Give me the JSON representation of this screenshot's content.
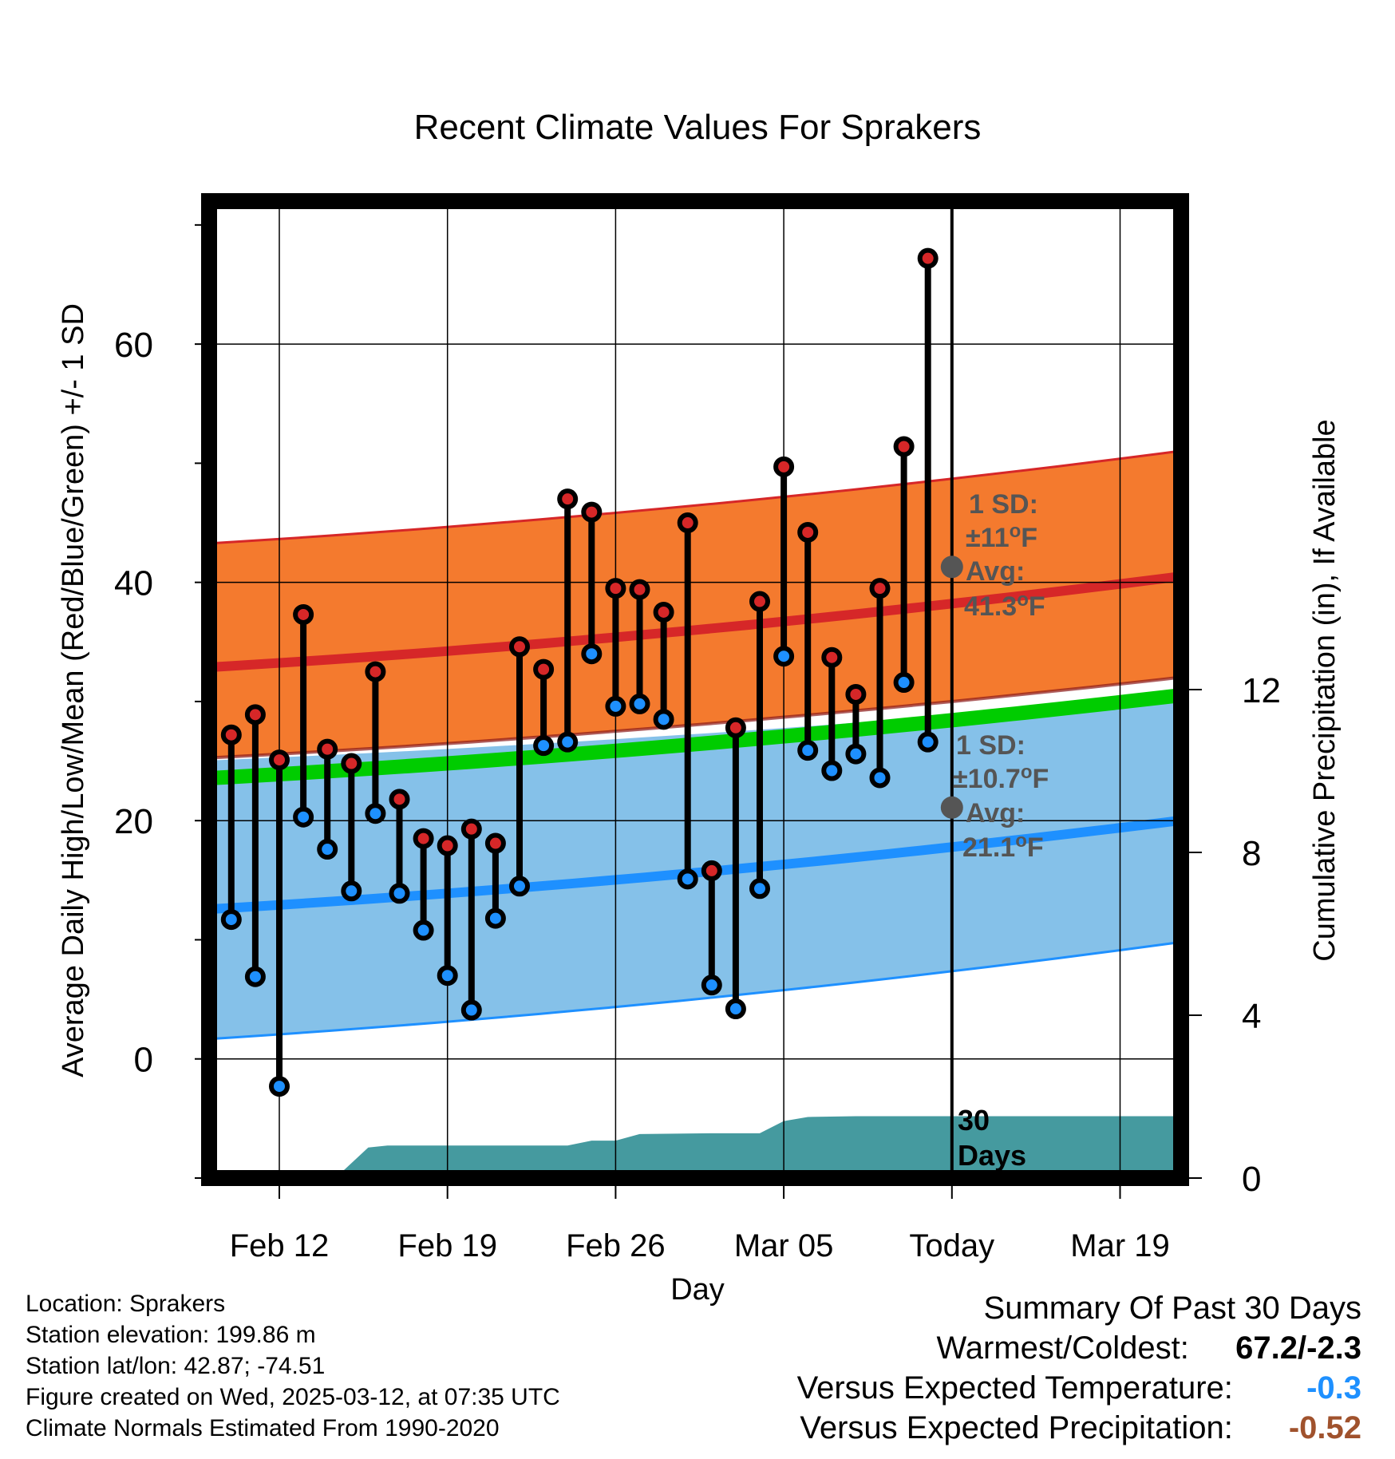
{
  "chart_data": {
    "type": "line",
    "title": "Recent Climate Values For Sprakers",
    "xlabel": "Day",
    "ylabel": "Average Daily High/Low/Mean (Red/Blue/Green) +/- 1 SD",
    "y2label": "Cumulative Precipitation (in), If Available",
    "ylim": [
      -10,
      72
    ],
    "y2lim": [
      0,
      24
    ],
    "xlim": [
      -3.5,
      54
    ],
    "grid": true,
    "today_index": 30,
    "x_ticks": [
      {
        "label": "Feb 12",
        "day": 0
      },
      {
        "label": "Feb 19",
        "day": 7
      },
      {
        "label": "Feb 26",
        "day": 14
      },
      {
        "label": "Mar 05",
        "day": 21
      },
      {
        "label": "Today",
        "day": 28
      },
      {
        "label": "Mar 19",
        "day": 35
      }
    ],
    "y_ticks": [
      0,
      20,
      40,
      60
    ],
    "y2_ticks": [
      0,
      4,
      8,
      12
    ],
    "normal_high": {
      "start": 32.8,
      "end": 45.2,
      "sd_upper_start": 43.2,
      "sd_upper_end": 55.8,
      "sd_lower_start": 25.2,
      "sd_lower_end": 36.2
    },
    "normal_low": {
      "start": 12.5,
      "end": 24.6,
      "sd_upper_start": 25.0,
      "sd_upper_end": 33.8,
      "sd_lower_start": 1.6,
      "sd_lower_end": 14.8
    },
    "normal_mean": {
      "start": 23.5,
      "end": 34.8
    },
    "series": [
      {
        "name": "Daily High",
        "values": [
          27.2,
          28.9,
          25.1,
          37.3,
          26.0,
          24.8,
          32.5,
          21.8,
          18.5,
          17.9,
          19.3,
          18.1,
          34.6,
          32.7,
          47.0,
          45.9,
          39.5,
          39.4,
          37.5,
          45.0,
          15.8,
          27.8,
          38.4,
          49.7,
          44.2,
          33.7,
          30.6,
          39.5,
          51.4,
          67.2
        ]
      },
      {
        "name": "Daily Low",
        "values": [
          11.7,
          6.9,
          -2.3,
          20.3,
          17.6,
          14.1,
          20.6,
          13.9,
          10.8,
          7.0,
          4.1,
          11.8,
          14.5,
          26.3,
          26.6,
          34.0,
          29.6,
          29.8,
          28.5,
          15.1,
          6.2,
          4.2,
          14.3,
          33.8,
          25.9,
          24.2,
          25.6,
          23.6,
          31.6,
          26.6
        ]
      }
    ],
    "precipitation": [
      {
        "day": -3.5,
        "value": 0.0
      },
      {
        "day": 1.7,
        "value": 0.0
      },
      {
        "day": 2.7,
        "value": 0.2
      },
      {
        "day": 3.7,
        "value": 0.75
      },
      {
        "day": 4.5,
        "value": 0.8
      },
      {
        "day": 12.0,
        "value": 0.8
      },
      {
        "day": 13.0,
        "value": 0.92
      },
      {
        "day": 14.0,
        "value": 0.92
      },
      {
        "day": 15.0,
        "value": 1.08
      },
      {
        "day": 18.0,
        "value": 1.1
      },
      {
        "day": 20.0,
        "value": 1.1
      },
      {
        "day": 21.0,
        "value": 1.4
      },
      {
        "day": 22.0,
        "value": 1.5
      },
      {
        "day": 24.0,
        "value": 1.52
      },
      {
        "day": 54.0,
        "value": 1.52
      }
    ],
    "annotations": {
      "high_sd": "1 SD:",
      "high_sd_val": "±11°F",
      "high_avg": "Avg:",
      "high_avg_val": "41.3°F",
      "low_sd": "1 SD:",
      "low_sd_val": "±10.7°F",
      "low_avg": "Avg:",
      "low_avg_val": "21.1°F",
      "days_num": "30",
      "days_word": "Days"
    },
    "colors": {
      "high": "#d62728",
      "high_band": "#f47a2e",
      "low": "#1e90ff",
      "low_band": "#85c1e9",
      "mean": "#00cc00",
      "precip": "#459a9f",
      "marker_high": "#d62728",
      "marker_low": "#1e90ff",
      "anno": "#555555"
    }
  },
  "footer": {
    "location": "Location: Sprakers",
    "elevation": "Station elevation: 199.86 m",
    "latlon": "Station lat/lon: 42.87; -74.51",
    "created": "Figure created on Wed, 2025-03-12, at 07:35 UTC",
    "normals": "Climate Normals Estimated From 1990-2020"
  },
  "summary": {
    "title": "Summary Of Past 30 Days",
    "warm_cold_label": "Warmest/Coldest:",
    "warm_cold_value": "67.2/-2.3",
    "temp_label": "Versus Expected Temperature:",
    "temp_value": "-0.3",
    "temp_color": "#1e90ff",
    "precip_label": "Versus Expected Precipitation:",
    "precip_value": "-0.52",
    "precip_color": "#a0522d"
  }
}
